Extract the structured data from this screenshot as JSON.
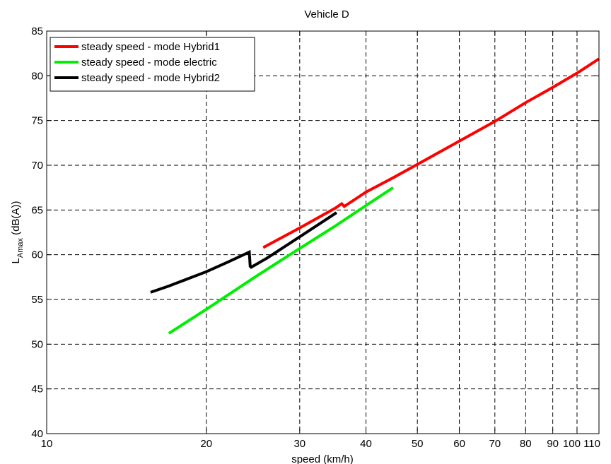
{
  "chart_data": {
    "type": "line",
    "title": "Vehicle D",
    "xlabel": "speed (km/h)",
    "ylabel_main": "L",
    "ylabel_sub": "Amax",
    "ylabel_rest": " (dB(A))",
    "x_scale": "log",
    "xlim": [
      10,
      110
    ],
    "ylim": [
      40,
      85
    ],
    "x_ticks": [
      10,
      20,
      30,
      40,
      50,
      60,
      70,
      80,
      90,
      100,
      110
    ],
    "x_tick_labels": [
      "10",
      "20",
      "30",
      "40",
      "50",
      "60",
      "70",
      "80",
      "90",
      "100",
      "110"
    ],
    "y_ticks": [
      40,
      45,
      50,
      55,
      60,
      65,
      70,
      75,
      80,
      85
    ],
    "y_tick_labels": [
      "40",
      "45",
      "50",
      "55",
      "60",
      "65",
      "70",
      "75",
      "80",
      "85"
    ],
    "grid": true,
    "legend_position": "top-left",
    "series": [
      {
        "name": "steady speed - mode Hybrid1",
        "color": "#ff0000",
        "x": [
          25.6,
          30,
          35,
          36,
          36.4,
          40,
          45,
          50,
          60,
          70,
          80,
          90,
          100,
          110
        ],
        "y": [
          60.8,
          63.0,
          65.2,
          65.7,
          65.4,
          67.0,
          68.6,
          70.1,
          72.7,
          74.9,
          77.0,
          78.7,
          80.3,
          81.9
        ]
      },
      {
        "name": "steady speed - mode electric",
        "color": "#00ee00",
        "x": [
          17,
          20,
          25,
          30,
          35,
          40,
          45
        ],
        "y": [
          51.2,
          53.9,
          57.7,
          60.7,
          63.2,
          65.5,
          67.5
        ]
      },
      {
        "name": "steady speed - mode Hybrid2",
        "color": "#000000",
        "x": [
          15.7,
          17,
          20,
          22,
          24.1,
          24.2,
          24.3,
          26,
          30,
          35.2
        ],
        "y": [
          55.8,
          56.5,
          58.1,
          59.2,
          60.3,
          58.7,
          58.6,
          59.6,
          62.0,
          64.7
        ]
      }
    ]
  }
}
